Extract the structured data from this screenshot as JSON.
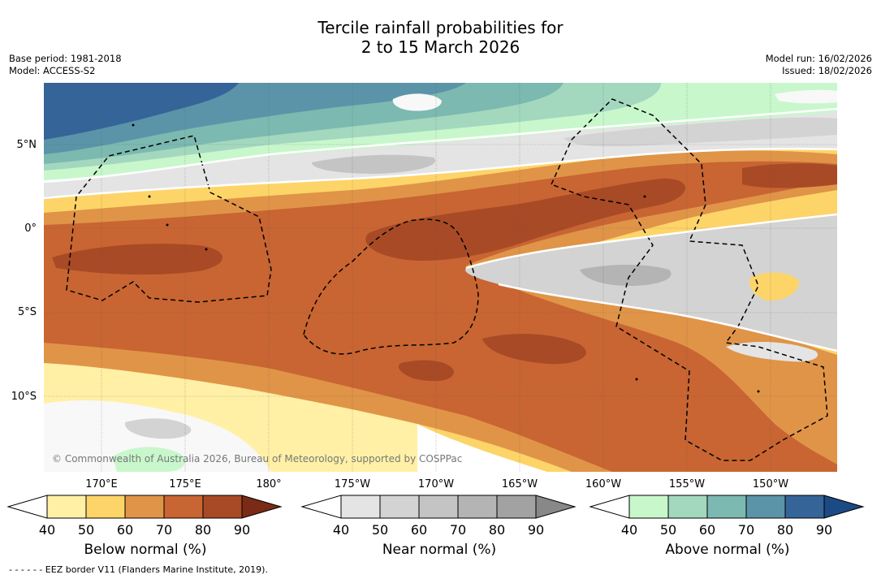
{
  "header": {
    "title_line1": "Tercile rainfall probabilities for",
    "title_line2": "2 to 15 March 2026",
    "base_period": "Base period: 1981-2018",
    "model": "Model: ACCESS-S2",
    "model_run": "Model run: 16/02/2026",
    "issued": "Issued: 18/02/2026"
  },
  "map": {
    "lat_labels": [
      "5°N",
      "0°",
      "5°S",
      "10°S"
    ],
    "lon_labels": [
      "170°E",
      "175°E",
      "180°",
      "175°W",
      "170°W",
      "165°W",
      "160°W",
      "155°W",
      "150°W"
    ],
    "copyright": "© Commonwealth of Australia 2026, Bureau of Meteorology, supported by COSPPac",
    "eez_note": "- -  - -  - - EEZ border V11 (Flanders Marine Institute, 2019)."
  },
  "legends": [
    {
      "id": "below",
      "title": "Below normal (%)",
      "ticks": [
        "40",
        "50",
        "60",
        "70",
        "80",
        "90"
      ],
      "colors": [
        "#fff0a6",
        "#fdd468",
        "#e09448",
        "#c86532",
        "#a84a26",
        "#7a2b16"
      ]
    },
    {
      "id": "near",
      "title": "Near normal (%)",
      "ticks": [
        "40",
        "50",
        "60",
        "70",
        "80",
        "90"
      ],
      "colors": [
        "#e4e4e4",
        "#d3d3d3",
        "#c4c4c4",
        "#b4b4b4",
        "#a2a2a2",
        "#888888"
      ]
    },
    {
      "id": "above",
      "title": "Above normal (%)",
      "ticks": [
        "40",
        "50",
        "60",
        "70",
        "80",
        "90"
      ],
      "colors": [
        "#c8f7cc",
        "#a3d8bf",
        "#7cb9b0",
        "#5b94a8",
        "#356498",
        "#1c4a84"
      ]
    }
  ],
  "map_colors": {
    "background": "#ffffff",
    "yellow": "#fdd468",
    "lightyellow": "#fff0a6",
    "orange": "#e09448",
    "darkorange": "#c86532",
    "brown": "#a84a26",
    "grey1": "#e4e4e4",
    "grey2": "#d3d3d3",
    "grey3": "#c4c4c4",
    "grey4": "#b4b4b4",
    "green1": "#c8f7cc",
    "green2": "#a3d8bf",
    "teal": "#7cb9b0",
    "blue1": "#5b94a8",
    "blue2": "#356498"
  }
}
